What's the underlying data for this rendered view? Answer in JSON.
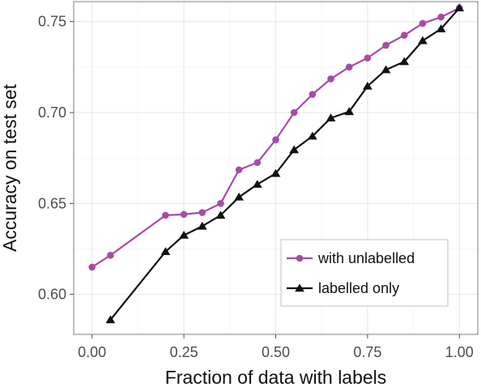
{
  "chart_data": {
    "type": "line",
    "xlabel": "Fraction of data with labels",
    "ylabel": "Accuracy on test set",
    "xlim": [
      -0.05,
      1.05
    ],
    "ylim": [
      0.578,
      0.761
    ],
    "x_ticks": [
      0.0,
      0.25,
      0.5,
      0.75,
      1.0
    ],
    "x_tick_labels": [
      "0.00",
      "0.25",
      "0.50",
      "0.75",
      "1.00"
    ],
    "y_ticks": [
      0.6,
      0.65,
      0.7,
      0.75
    ],
    "y_tick_labels": [
      "0.60",
      "0.65",
      "0.70",
      "0.75"
    ],
    "grid": true,
    "legend_position": "bottom-right",
    "series": [
      {
        "name": "with unlabelled",
        "color": "#a64ca6",
        "marker": "circle",
        "x": [
          0.0,
          0.05,
          0.2,
          0.25,
          0.3,
          0.35,
          0.4,
          0.45,
          0.5,
          0.55,
          0.6,
          0.65,
          0.7,
          0.75,
          0.8,
          0.85,
          0.9,
          0.95,
          1.0
        ],
        "y": [
          0.615,
          0.6215,
          0.6435,
          0.644,
          0.645,
          0.65,
          0.6685,
          0.6725,
          0.685,
          0.7,
          0.71,
          0.7185,
          0.725,
          0.73,
          0.737,
          0.7425,
          0.749,
          0.7525,
          0.7575
        ]
      },
      {
        "name": "labelled only",
        "color": "#111111",
        "marker": "triangle",
        "x": [
          0.05,
          0.2,
          0.25,
          0.3,
          0.35,
          0.4,
          0.45,
          0.5,
          0.55,
          0.6,
          0.65,
          0.7,
          0.75,
          0.8,
          0.85,
          0.9,
          0.95,
          1.0
        ],
        "y": [
          0.586,
          0.6235,
          0.6325,
          0.6375,
          0.6435,
          0.6535,
          0.6605,
          0.6665,
          0.6795,
          0.687,
          0.697,
          0.7005,
          0.7145,
          0.7235,
          0.728,
          0.7395,
          0.746,
          0.7575
        ]
      }
    ]
  }
}
